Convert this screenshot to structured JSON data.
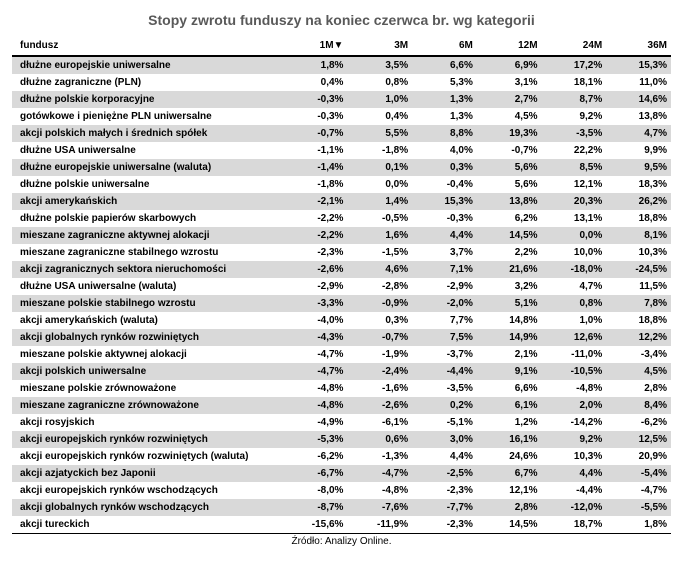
{
  "title": "Stopy zwrotu funduszy na koniec czerwca br. wg kategorii",
  "columns": [
    "fundusz",
    "1M▼",
    "3M",
    "6M",
    "12M",
    "24M",
    "36M"
  ],
  "rows": [
    [
      "dłużne europejskie uniwersalne",
      "1,8%",
      "3,5%",
      "6,6%",
      "6,9%",
      "17,2%",
      "15,3%"
    ],
    [
      "dłużne zagraniczne (PLN)",
      "0,4%",
      "0,8%",
      "5,3%",
      "3,1%",
      "18,1%",
      "11,0%"
    ],
    [
      "dłużne polskie korporacyjne",
      "-0,3%",
      "1,0%",
      "1,3%",
      "2,7%",
      "8,7%",
      "14,6%"
    ],
    [
      "gotówkowe i pieniężne PLN uniwersalne",
      "-0,3%",
      "0,4%",
      "1,3%",
      "4,5%",
      "9,2%",
      "13,8%"
    ],
    [
      "akcji polskich małych i średnich spółek",
      "-0,7%",
      "5,5%",
      "8,8%",
      "19,3%",
      "-3,5%",
      "4,7%"
    ],
    [
      "dłużne USA uniwersalne",
      "-1,1%",
      "-1,8%",
      "4,0%",
      "-0,7%",
      "22,2%",
      "9,9%"
    ],
    [
      "dłużne europejskie uniwersalne (waluta)",
      "-1,4%",
      "0,1%",
      "0,3%",
      "5,6%",
      "8,5%",
      "9,5%"
    ],
    [
      "dłużne polskie uniwersalne",
      "-1,8%",
      "0,0%",
      "-0,4%",
      "5,6%",
      "12,1%",
      "18,3%"
    ],
    [
      "akcji amerykańskich",
      "-2,1%",
      "1,4%",
      "15,3%",
      "13,8%",
      "20,3%",
      "26,2%"
    ],
    [
      "dłużne polskie papierów skarbowych",
      "-2,2%",
      "-0,5%",
      "-0,3%",
      "6,2%",
      "13,1%",
      "18,8%"
    ],
    [
      "mieszane zagraniczne aktywnej alokacji",
      "-2,2%",
      "1,6%",
      "4,4%",
      "14,5%",
      "0,0%",
      "8,1%"
    ],
    [
      "mieszane zagraniczne stabilnego wzrostu",
      "-2,3%",
      "-1,5%",
      "3,7%",
      "2,2%",
      "10,0%",
      "10,3%"
    ],
    [
      "akcji zagranicznych sektora nieruchomości",
      "-2,6%",
      "4,6%",
      "7,1%",
      "21,6%",
      "-18,0%",
      "-24,5%"
    ],
    [
      "dłużne USA uniwersalne (waluta)",
      "-2,9%",
      "-2,8%",
      "-2,9%",
      "3,2%",
      "4,7%",
      "11,5%"
    ],
    [
      "mieszane polskie stabilnego wzrostu",
      "-3,3%",
      "-0,9%",
      "-2,0%",
      "5,1%",
      "0,8%",
      "7,8%"
    ],
    [
      "akcji amerykańskich (waluta)",
      "-4,0%",
      "0,3%",
      "7,7%",
      "14,8%",
      "1,0%",
      "18,8%"
    ],
    [
      "akcji globalnych rynków rozwiniętych",
      "-4,3%",
      "-0,7%",
      "7,5%",
      "14,9%",
      "12,6%",
      "12,2%"
    ],
    [
      "mieszane polskie aktywnej alokacji",
      "-4,7%",
      "-1,9%",
      "-3,7%",
      "2,1%",
      "-11,0%",
      "-3,4%"
    ],
    [
      "akcji polskich uniwersalne",
      "-4,7%",
      "-2,4%",
      "-4,4%",
      "9,1%",
      "-10,5%",
      "4,5%"
    ],
    [
      "mieszane polskie zrównoważone",
      "-4,8%",
      "-1,6%",
      "-3,5%",
      "6,6%",
      "-4,8%",
      "2,8%"
    ],
    [
      "mieszane zagraniczne zrównoważone",
      "-4,8%",
      "-2,6%",
      "0,2%",
      "6,1%",
      "2,0%",
      "8,4%"
    ],
    [
      "akcji rosyjskich",
      "-4,9%",
      "-6,1%",
      "-5,1%",
      "1,2%",
      "-14,2%",
      "-6,2%"
    ],
    [
      "akcji europejskich rynków rozwiniętych",
      "-5,3%",
      "0,6%",
      "3,0%",
      "16,1%",
      "9,2%",
      "12,5%"
    ],
    [
      "akcji europejskich rynków rozwiniętych (waluta)",
      "-6,2%",
      "-1,3%",
      "4,4%",
      "24,6%",
      "10,3%",
      "20,9%"
    ],
    [
      "akcji azjatyckich bez Japonii",
      "-6,7%",
      "-4,7%",
      "-2,5%",
      "6,7%",
      "4,4%",
      "-5,4%"
    ],
    [
      "akcji europejskich rynków wschodzących",
      "-8,0%",
      "-4,8%",
      "-2,3%",
      "12,1%",
      "-4,4%",
      "-4,7%"
    ],
    [
      "akcji globalnych rynków wschodzących",
      "-8,7%",
      "-7,6%",
      "-7,7%",
      "2,8%",
      "-12,0%",
      "-5,5%"
    ],
    [
      "akcji tureckich",
      "-15,6%",
      "-11,9%",
      "-2,3%",
      "14,5%",
      "18,7%",
      "1,8%"
    ]
  ],
  "source": "Źródło: Analizy Online.",
  "colors": {
    "row_even": "#d9d9d9",
    "row_odd": "#ffffff",
    "title_color": "#595959"
  },
  "fontsize": {
    "title": 14,
    "table": 10,
    "source": 10
  }
}
